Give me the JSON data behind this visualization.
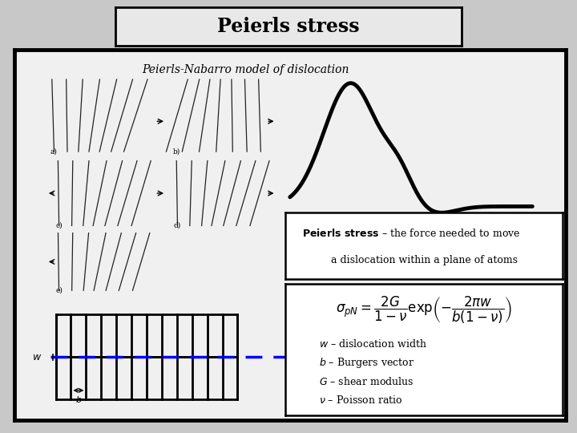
{
  "title": "Peierls stress",
  "subtitle": "Peierls-Nabarro model of dislocation",
  "bg_color": "#c8c8c8",
  "inner_bg": "#f0f0f0",
  "title_bg": "#e8e8e8",
  "peierls_def_bold": "Peierls stress",
  "peierls_def_rest": " – the force needed to move",
  "peierls_def_line2": "a dislocation within a plane of atoms",
  "formula": "$\\sigma_{pN} = \\dfrac{2G}{1-\\nu}\\exp\\!\\left(-\\dfrac{2\\pi w}{b(1-\\nu)}\\right)$",
  "variables": [
    "$w$ – dislocation width",
    "$b$ – Burgers vector",
    "$G$ – shear modulus",
    "$\\nu$ – Poisson ratio"
  ]
}
